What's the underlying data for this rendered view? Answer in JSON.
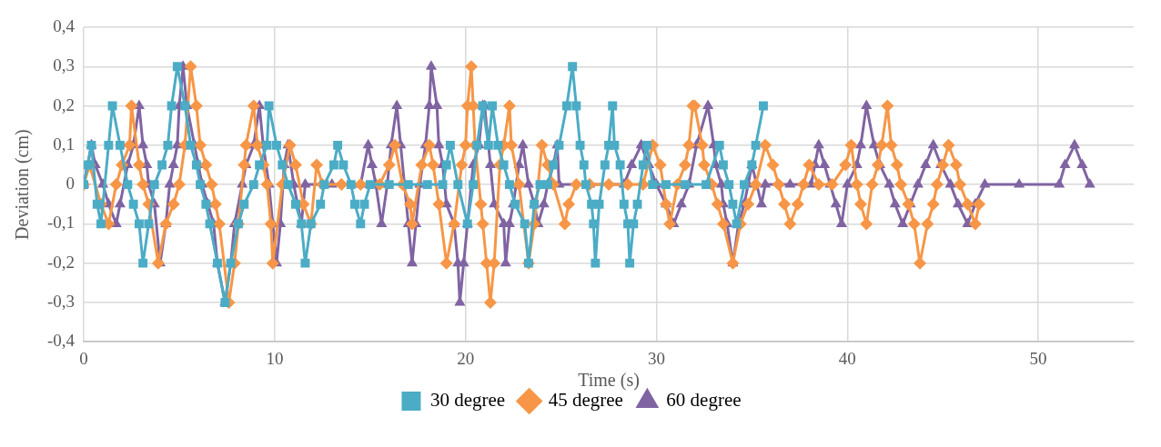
{
  "chart_data": {
    "type": "line",
    "xlabel": "Time (s)",
    "ylabel": "Deviation (cm)",
    "xlim": [
      0,
      55
    ],
    "xticks": [
      0,
      10,
      20,
      30,
      40,
      50
    ],
    "ylim": [
      -0.4,
      0.4
    ],
    "yticks": [
      {
        "value": -0.4,
        "label": "-0,4"
      },
      {
        "value": -0.3,
        "label": "-0,3"
      },
      {
        "value": -0.2,
        "label": "-0,2"
      },
      {
        "value": -0.1,
        "label": "-0,1"
      },
      0,
      {
        "value": 0.1,
        "label": "0,1"
      },
      {
        "value": 0.2,
        "label": "0,2"
      },
      {
        "value": 0.3,
        "label": "0,3"
      },
      {
        "value": 0.4,
        "label": "0,4"
      }
    ],
    "grid": true,
    "legend": "bottom",
    "line_style": "solid",
    "series": [
      {
        "name": "30 degree",
        "color": "#4bacc6",
        "marker": "square",
        "x": [
          0,
          0.2,
          0.4,
          0.7,
          0.9,
          1.3,
          1.5,
          1.9,
          2.3,
          2.6,
          2.9,
          3.1,
          3.4,
          3.7,
          4.1,
          4.4,
          4.6,
          4.9,
          5.3,
          5.6,
          5.9,
          6.1,
          6.4,
          6.6,
          7.0,
          7.4,
          7.7,
          8.1,
          8.4,
          8.9,
          9.2,
          9.6,
          9.7,
          10.1,
          10.4,
          10.7,
          11.1,
          11.4,
          11.6,
          11.9,
          12.4,
          12.6,
          13.1,
          13.3,
          13.6,
          14.0,
          14.2,
          14.5,
          14.7,
          15.0,
          16.0,
          17.0,
          18.0,
          18.8,
          19.0,
          19.2,
          19.6,
          20.1,
          20.4,
          20.6,
          20.9,
          21.2,
          21.4,
          21.7,
          22.0,
          22.3,
          22.6,
          23.1,
          23.3,
          23.6,
          23.9,
          24.3,
          24.6,
          24.9,
          25.3,
          25.6,
          25.8,
          26.0,
          26.2,
          26.3,
          26.6,
          26.7,
          26.8,
          27.0,
          27.3,
          27.5,
          27.7,
          27.8,
          28.1,
          28.3,
          28.5,
          28.6,
          28.8,
          29.0,
          29.3,
          29.5,
          29.8,
          30.5,
          31.5,
          32.6,
          33.3,
          33.5,
          33.8,
          34.0,
          34.2,
          34.6,
          35.0,
          35.2,
          35.6
        ],
        "values": [
          0,
          0.05,
          0.1,
          -0.05,
          -0.1,
          0.1,
          0.2,
          0.1,
          0,
          -0.05,
          -0.1,
          -0.2,
          -0.1,
          0,
          0.05,
          0.1,
          0.2,
          0.3,
          0.2,
          0.1,
          0.05,
          0,
          -0.05,
          -0.1,
          -0.2,
          -0.3,
          -0.2,
          -0.1,
          -0.05,
          0,
          0.05,
          0.1,
          0.2,
          0.1,
          0.05,
          0,
          -0.05,
          -0.1,
          -0.2,
          -0.1,
          -0.05,
          0,
          0.05,
          0.1,
          0.05,
          0,
          -0.05,
          -0.1,
          -0.05,
          0,
          0,
          0,
          0,
          0,
          0.05,
          0.1,
          0,
          -0.1,
          0,
          0.1,
          0.2,
          0.1,
          0.2,
          0.1,
          0.05,
          0,
          -0.05,
          -0.1,
          -0.2,
          -0.05,
          0,
          0,
          0.05,
          0.1,
          0.2,
          0.3,
          0.2,
          0.1,
          0.05,
          0,
          -0.05,
          -0.1,
          -0.2,
          -0.05,
          0.05,
          0.1,
          0.2,
          0.1,
          0.05,
          -0.05,
          -0.1,
          -0.2,
          -0.1,
          -0.05,
          0.05,
          0.1,
          0,
          0,
          0,
          0,
          0.1,
          0.05,
          0,
          -0.05,
          -0.1,
          0,
          0.05,
          0.1,
          0.2
        ]
      },
      {
        "name": "45 degree",
        "color": "#f79646",
        "marker": "diamond",
        "x": [
          0,
          0.3,
          0.9,
          1.3,
          1.7,
          2.0,
          2.4,
          2.5,
          2.9,
          3.1,
          3.4,
          3.9,
          4.3,
          4.7,
          5.0,
          5.3,
          5.6,
          5.9,
          6.1,
          6.4,
          6.7,
          6.9,
          7.1,
          7.6,
          7.9,
          8.1,
          8.4,
          8.5,
          8.9,
          9.1,
          9.4,
          9.6,
          9.8,
          9.9,
          10.4,
          10.8,
          11.1,
          11.5,
          11.9,
          12.2,
          12.5,
          13.5,
          14.5,
          15.5,
          16.0,
          16.3,
          16.7,
          17.1,
          17.2,
          17.7,
          18.1,
          18.3,
          18.6,
          19.0,
          19.4,
          19.8,
          20.0,
          20.1,
          20.3,
          20.4,
          20.5,
          20.8,
          20.9,
          21.1,
          21.3,
          21.5,
          21.8,
          22.0,
          22.3,
          22.4,
          22.8,
          23.3,
          23.6,
          24.0,
          24.3,
          24.6,
          25.2,
          25.4,
          25.8,
          26.5,
          27.5,
          28.5,
          29.3,
          29.8,
          30.2,
          30.5,
          30.7,
          31.1,
          31.5,
          31.7,
          31.9,
          32.0,
          32.4,
          32.5,
          32.9,
          33.2,
          33.5,
          34.0,
          34.4,
          34.8,
          35.2,
          35.7,
          36.1,
          36.4,
          36.7,
          37.0,
          37.4,
          37.7,
          38.0,
          38.5,
          39.2,
          39.9,
          40.2,
          40.5,
          40.7,
          41.0,
          41.3,
          41.6,
          41.8,
          42.1,
          42.3,
          42.6,
          42.8,
          43.2,
          43.5,
          43.8,
          44.2,
          44.5,
          44.7,
          45.0,
          45.3,
          45.7,
          45.9,
          46.3,
          46.7,
          46.9
        ],
        "values": [
          0,
          0.05,
          -0.05,
          -0.1,
          0,
          0.05,
          0.1,
          0.2,
          0.05,
          0,
          -0.05,
          -0.2,
          -0.1,
          -0.05,
          0,
          0.1,
          0.3,
          0.2,
          0.1,
          0.05,
          0,
          -0.05,
          -0.1,
          -0.3,
          -0.2,
          -0.1,
          0.05,
          0.1,
          0.2,
          0.1,
          0.05,
          0,
          -0.1,
          -0.2,
          0,
          0.1,
          0.05,
          -0.05,
          -0.1,
          0.05,
          0,
          0,
          0,
          0,
          0.05,
          0.1,
          0,
          -0.05,
          -0.1,
          0.05,
          0.1,
          0.05,
          -0.05,
          -0.2,
          -0.1,
          0.05,
          0.1,
          0.2,
          0.3,
          0.2,
          0.1,
          -0.05,
          -0.1,
          -0.2,
          -0.3,
          -0.2,
          0.05,
          0.1,
          0.2,
          0.1,
          0,
          -0.2,
          -0.1,
          0.1,
          0.05,
          0,
          -0.1,
          -0.05,
          0,
          0,
          0,
          0,
          0,
          0.1,
          0.05,
          -0.05,
          -0.1,
          0,
          0.05,
          0.1,
          0.2,
          0.2,
          0.1,
          0.05,
          0,
          -0.05,
          -0.1,
          -0.2,
          -0.1,
          -0.05,
          0,
          0.1,
          0.05,
          0,
          -0.05,
          -0.1,
          -0.05,
          0,
          0.05,
          0,
          0,
          0.05,
          0.1,
          0,
          -0.05,
          -0.1,
          0,
          0.05,
          0.1,
          0.2,
          0.1,
          0.05,
          0,
          -0.05,
          -0.1,
          -0.2,
          -0.1,
          -0.05,
          0,
          0.05,
          0.1,
          0.05,
          0,
          -0.05,
          -0.1,
          -0.05
        ]
      },
      {
        "name": "60 degree",
        "color": "#8064a2",
        "marker": "triangle",
        "x": [
          0,
          0.4,
          0.6,
          1.0,
          1.3,
          1.7,
          1.9,
          2.3,
          2.6,
          2.9,
          3.1,
          3.3,
          3.4,
          3.7,
          4.0,
          4.3,
          4.5,
          4.7,
          4.9,
          5.0,
          5.2,
          5.4,
          5.8,
          6.0,
          6.2,
          6.5,
          6.8,
          7.0,
          7.4,
          7.7,
          7.9,
          8.3,
          8.5,
          8.9,
          9.2,
          9.4,
          9.7,
          9.9,
          10.1,
          10.3,
          10.5,
          10.7,
          11.0,
          11.4,
          11.6,
          13.0,
          14.5,
          14.9,
          15.1,
          15.3,
          15.6,
          15.9,
          16.1,
          16.4,
          16.6,
          16.8,
          17.0,
          17.2,
          17.4,
          17.6,
          17.9,
          18.1,
          18.2,
          18.5,
          18.6,
          18.8,
          19.0,
          19.4,
          19.6,
          19.7,
          19.9,
          20.1,
          20.4,
          20.7,
          20.9,
          21.0,
          21.3,
          21.5,
          22.0,
          22.1,
          22.3,
          22.5,
          22.8,
          23.0,
          23.3,
          23.6,
          23.8,
          24.1,
          24.3,
          24.6,
          24.8,
          24.9,
          26.5,
          28.3,
          28.7,
          29.2,
          29.6,
          30.0,
          30.5,
          30.9,
          31.3,
          31.7,
          32.1,
          32.7,
          33.0,
          33.1,
          33.4,
          33.5,
          33.7,
          34.0,
          34.3,
          34.6,
          34.8,
          35.0,
          35.5,
          35.7,
          37.0,
          38.1,
          38.3,
          38.5,
          38.8,
          39.1,
          39.4,
          39.7,
          40.0,
          40.5,
          40.7,
          41.0,
          41.4,
          41.7,
          42.2,
          42.5,
          42.9,
          43.3,
          43.7,
          44.1,
          44.5,
          44.9,
          45.4,
          45.8,
          46.3,
          46.7,
          47.2,
          49.0,
          51.1,
          51.4,
          51.9,
          52.3,
          52.7
        ],
        "values": [
          0,
          0.1,
          0.05,
          0,
          -0.05,
          -0.1,
          -0.05,
          0.05,
          0.1,
          0.2,
          0.1,
          0.05,
          0,
          -0.05,
          -0.2,
          -0.1,
          0,
          0.05,
          0.1,
          0.2,
          0.3,
          0.2,
          0.1,
          0.05,
          0,
          -0.05,
          -0.1,
          -0.2,
          -0.3,
          -0.2,
          -0.1,
          0,
          0.05,
          0.1,
          0.2,
          0.1,
          0,
          -0.1,
          -0.2,
          -0.1,
          0.05,
          0.1,
          0,
          -0.1,
          0,
          0,
          0,
          0.1,
          0.05,
          0,
          -0.1,
          0,
          0.1,
          0.2,
          0.1,
          0,
          -0.1,
          -0.2,
          -0.1,
          0,
          0.1,
          0.2,
          0.3,
          0.2,
          0.1,
          0.05,
          -0.05,
          -0.1,
          -0.2,
          -0.3,
          -0.2,
          -0.1,
          0.05,
          0.1,
          0.2,
          0.2,
          0.05,
          -0.05,
          -0.1,
          -0.2,
          -0.1,
          -0.05,
          0.05,
          0.1,
          0,
          -0.05,
          -0.1,
          -0.05,
          0,
          0.05,
          0.1,
          0,
          0,
          0,
          0.05,
          0.1,
          0.05,
          0,
          -0.05,
          -0.1,
          -0.05,
          0,
          0.1,
          0.2,
          0.1,
          0.05,
          0,
          -0.05,
          -0.1,
          -0.2,
          -0.1,
          -0.05,
          0,
          0.05,
          -0.05,
          0,
          0,
          0,
          0.05,
          0.1,
          0.05,
          0,
          -0.05,
          -0.1,
          0,
          0.05,
          0.1,
          0.2,
          0.1,
          0.05,
          0,
          -0.05,
          -0.1,
          -0.05,
          0,
          0.05,
          0.1,
          0.05,
          0,
          -0.05,
          -0.1,
          -0.05,
          0,
          0,
          0,
          0.05,
          0.1,
          0.05,
          0
        ]
      }
    ]
  }
}
